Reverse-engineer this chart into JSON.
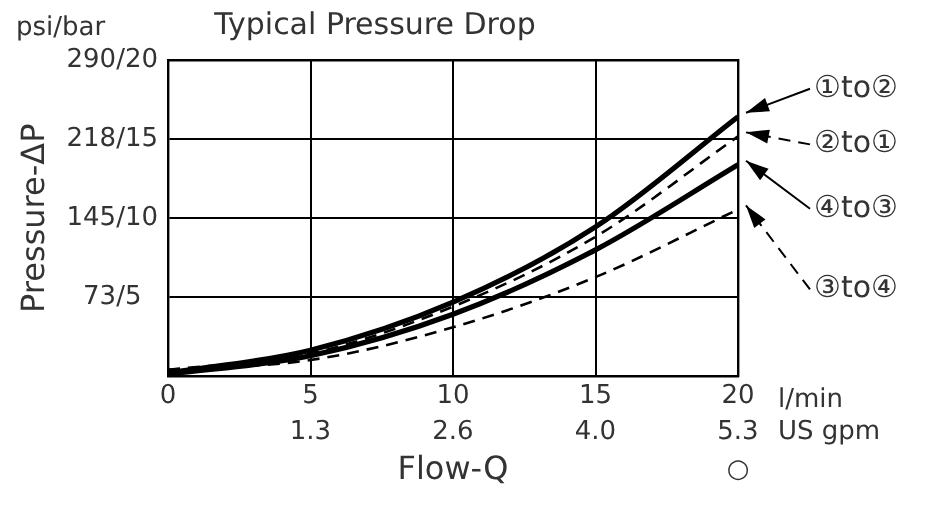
{
  "chart_data": {
    "type": "line",
    "title": "Typical Pressure Drop",
    "xlabel": "Flow-Q",
    "ylabel": "Pressure-ΔP",
    "x": [
      0,
      5,
      10,
      15,
      20
    ],
    "series": [
      {
        "name": "①to②",
        "color": "#000000",
        "line_style": "solid",
        "values": [
          3,
          24,
          68,
          137,
          238
        ]
      },
      {
        "name": "②to①",
        "color": "#000000",
        "line_style": "dashed",
        "values": [
          6,
          21,
          64,
          128,
          220
        ]
      },
      {
        "name": "④to③",
        "color": "#000000",
        "line_style": "solid",
        "values": [
          2,
          19,
          57,
          116,
          194
        ]
      },
      {
        "name": "③to④",
        "color": "#000000",
        "line_style": "dashed",
        "values": [
          6,
          15,
          45,
          91,
          153
        ]
      }
    ],
    "xlim": [
      0,
      20
    ],
    "ylim": [
      0,
      290
    ],
    "xticks": [
      0,
      5,
      10,
      15,
      20
    ],
    "x2lim": [
      0,
      5.28
    ],
    "x2ticks": [
      {
        "value": 1.32,
        "label": "1.3"
      },
      {
        "value": 2.64,
        "label": "2.6"
      },
      {
        "value": 3.96,
        "label": "4.0"
      },
      {
        "value": 5.28,
        "label": "5.3"
      }
    ],
    "yticks": [
      {
        "value": 72.5,
        "label": "73/"
      },
      {
        "value": 145,
        "label": "145/"
      },
      {
        "value": 217.5,
        "label": "218/"
      },
      {
        "value": 290,
        "label": "290/"
      }
    ],
    "y2lim": [
      0,
      20
    ],
    "y2ticks": [
      5,
      10,
      15,
      20
    ],
    "grid": true,
    "marker": "none",
    "legend": "right",
    "annotations": [
      "psi/bar",
      "l/min",
      "US gpm",
      "○"
    ]
  }
}
